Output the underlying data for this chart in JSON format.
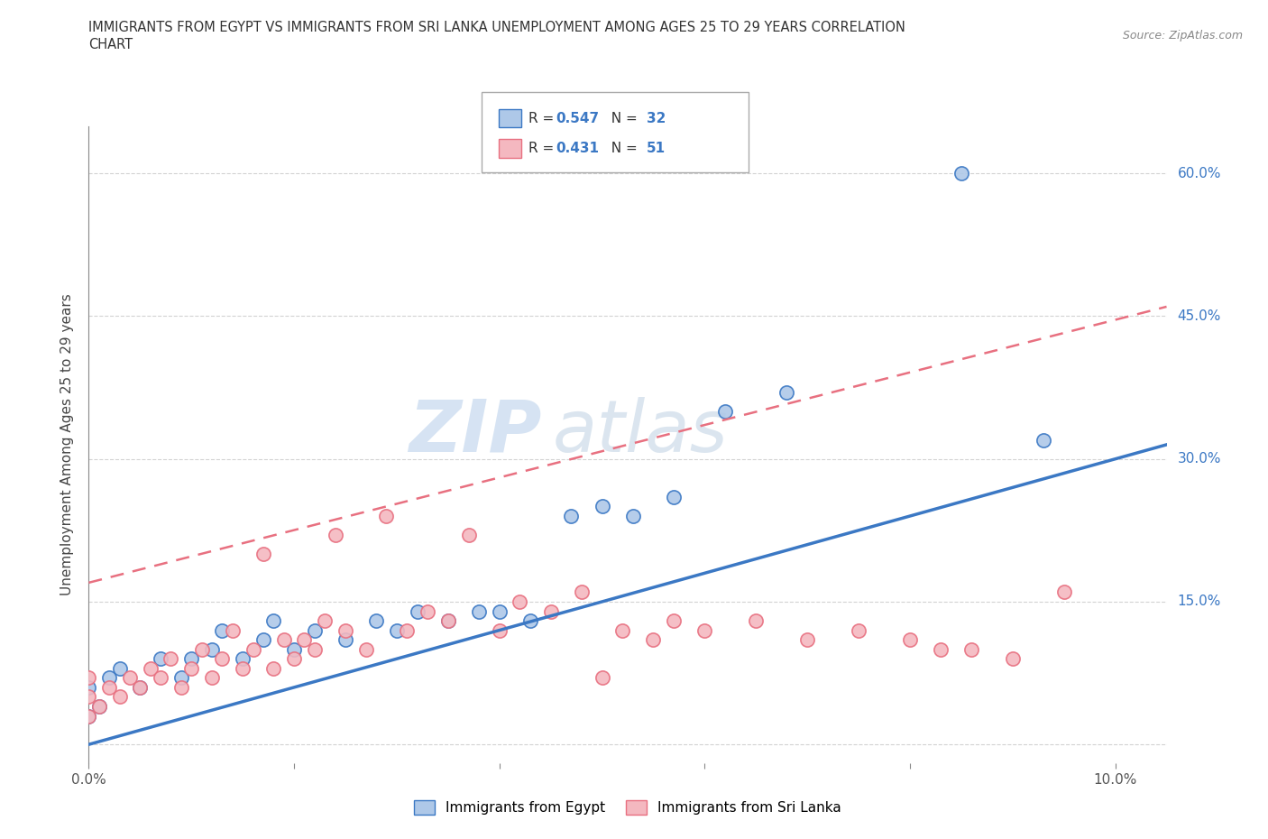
{
  "title_line1": "IMMIGRANTS FROM EGYPT VS IMMIGRANTS FROM SRI LANKA UNEMPLOYMENT AMONG AGES 25 TO 29 YEARS CORRELATION",
  "title_line2": "CHART",
  "source": "Source: ZipAtlas.com",
  "ylabel": "Unemployment Among Ages 25 to 29 years",
  "xlim": [
    0.0,
    0.105
  ],
  "ylim": [
    -0.02,
    0.65
  ],
  "x_ticks": [
    0.0,
    0.02,
    0.04,
    0.06,
    0.08,
    0.1
  ],
  "x_tick_labels": [
    "0.0%",
    "",
    "",
    "",
    "",
    "10.0%"
  ],
  "y_ticks": [
    0.0,
    0.15,
    0.3,
    0.45,
    0.6
  ],
  "y_tick_labels": [
    "",
    "15.0%",
    "30.0%",
    "45.0%",
    "60.0%"
  ],
  "egypt_color": "#3b78c4",
  "egypt_color_fill": "#aec8e8",
  "srilanka_color": "#e87080",
  "srilanka_color_fill": "#f4b8c0",
  "egypt_R": 0.547,
  "egypt_N": 32,
  "srilanka_R": 0.431,
  "srilanka_N": 51,
  "egypt_scatter_x": [
    0.0,
    0.0,
    0.001,
    0.002,
    0.003,
    0.005,
    0.007,
    0.009,
    0.01,
    0.012,
    0.013,
    0.015,
    0.017,
    0.018,
    0.02,
    0.022,
    0.025,
    0.028,
    0.03,
    0.032,
    0.035,
    0.038,
    0.04,
    0.043,
    0.047,
    0.05,
    0.053,
    0.057,
    0.062,
    0.068,
    0.085,
    0.093
  ],
  "egypt_scatter_y": [
    0.03,
    0.06,
    0.04,
    0.07,
    0.08,
    0.06,
    0.09,
    0.07,
    0.09,
    0.1,
    0.12,
    0.09,
    0.11,
    0.13,
    0.1,
    0.12,
    0.11,
    0.13,
    0.12,
    0.14,
    0.13,
    0.14,
    0.14,
    0.13,
    0.24,
    0.25,
    0.24,
    0.26,
    0.35,
    0.37,
    0.6,
    0.32
  ],
  "srilanka_scatter_x": [
    0.0,
    0.0,
    0.0,
    0.001,
    0.002,
    0.003,
    0.004,
    0.005,
    0.006,
    0.007,
    0.008,
    0.009,
    0.01,
    0.011,
    0.012,
    0.013,
    0.014,
    0.015,
    0.016,
    0.017,
    0.018,
    0.019,
    0.02,
    0.021,
    0.022,
    0.023,
    0.024,
    0.025,
    0.027,
    0.029,
    0.031,
    0.033,
    0.035,
    0.037,
    0.04,
    0.042,
    0.045,
    0.048,
    0.05,
    0.052,
    0.055,
    0.057,
    0.06,
    0.065,
    0.07,
    0.075,
    0.08,
    0.083,
    0.086,
    0.09,
    0.095
  ],
  "srilanka_scatter_y": [
    0.03,
    0.05,
    0.07,
    0.04,
    0.06,
    0.05,
    0.07,
    0.06,
    0.08,
    0.07,
    0.09,
    0.06,
    0.08,
    0.1,
    0.07,
    0.09,
    0.12,
    0.08,
    0.1,
    0.2,
    0.08,
    0.11,
    0.09,
    0.11,
    0.1,
    0.13,
    0.22,
    0.12,
    0.1,
    0.24,
    0.12,
    0.14,
    0.13,
    0.22,
    0.12,
    0.15,
    0.14,
    0.16,
    0.07,
    0.12,
    0.11,
    0.13,
    0.12,
    0.13,
    0.11,
    0.12,
    0.11,
    0.1,
    0.1,
    0.09,
    0.16
  ],
  "egypt_line_x": [
    0.0,
    0.105
  ],
  "egypt_line_y": [
    0.0,
    0.315
  ],
  "srilanka_line_x": [
    0.0,
    0.105
  ],
  "srilanka_line_y": [
    0.17,
    0.46
  ],
  "legend_egypt_label": "Immigrants from Egypt",
  "legend_srilanka_label": "Immigrants from Sri Lanka",
  "watermark_zip": "ZIP",
  "watermark_atlas": "atlas",
  "background_color": "#ffffff",
  "grid_color": "#c8c8c8",
  "stat_label_color": "#333333",
  "stat_value_color": "#3b78c4"
}
